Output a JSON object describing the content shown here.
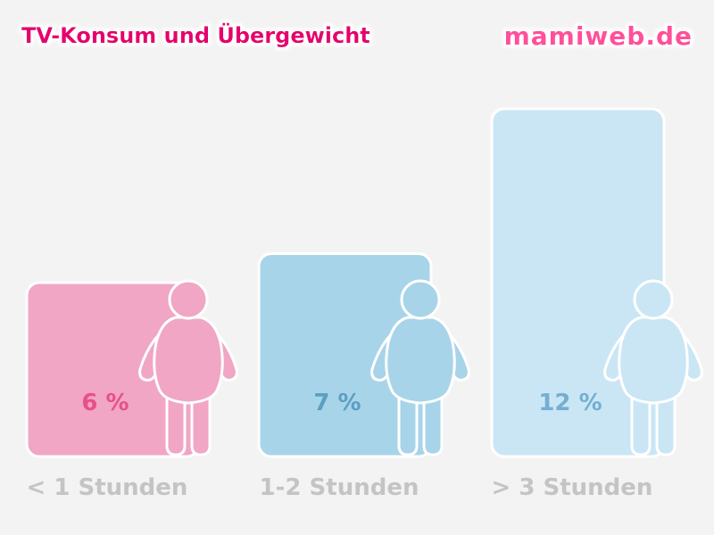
{
  "header": {
    "title": "TV-Konsum und Übergewicht",
    "brand": "mamiweb.de"
  },
  "colors": {
    "background": "#f3f3f3",
    "title": "#e5006e",
    "brand": "#ff4f9b",
    "category_label": "#c4c4c4",
    "bar_border": "#ffffff"
  },
  "chart_data": {
    "type": "bar",
    "title": "TV-Konsum und Übergewicht",
    "categories": [
      "< 1 Stunden",
      "1-2 Stunden",
      "> 3 Stunden"
    ],
    "values": [
      6,
      7,
      12
    ],
    "value_labels": [
      "6 %",
      "7 %",
      "12 %"
    ],
    "unit": "%",
    "ylim": [
      0,
      12
    ],
    "grid": false,
    "bar_colors": [
      "#f0a6c4",
      "#a8d4e9",
      "#cae6f5"
    ],
    "figure_colors": [
      "#f0a6c4",
      "#a8d4e9",
      "#cae6f5"
    ],
    "value_label_colors": [
      "#e8508c",
      "#5b9fc2",
      "#74aed2"
    ],
    "figure_icon": "child-figure-icon"
  }
}
